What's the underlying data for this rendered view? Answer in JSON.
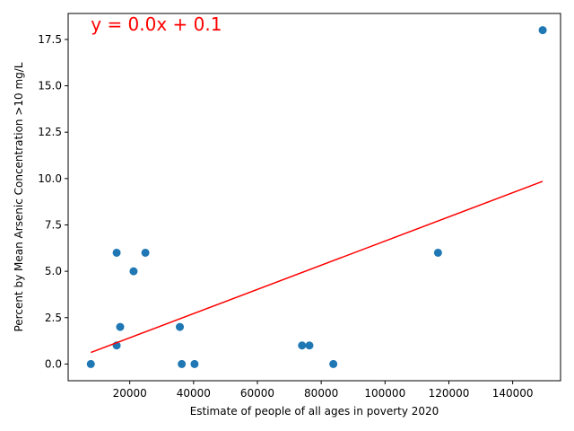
{
  "chart_data": {
    "type": "scatter",
    "title": "",
    "xlabel": "Estimate of people of all ages in poverty 2020",
    "ylabel": "Percent by Mean Arsenic Concentration >10 mg/L",
    "xlim": [
      700,
      155000
    ],
    "ylim": [
      -0.9,
      18.9
    ],
    "xticks": [
      20000,
      40000,
      60000,
      80000,
      100000,
      120000,
      140000
    ],
    "xtick_labels": [
      "20000",
      "40000",
      "60000",
      "80000",
      "100000",
      "120000",
      "140000"
    ],
    "yticks": [
      0.0,
      2.5,
      5.0,
      7.5,
      10.0,
      12.5,
      15.0,
      17.5
    ],
    "ytick_labels": [
      "0.0",
      "2.5",
      "5.0",
      "7.5",
      "10.0",
      "12.5",
      "15.0",
      "17.5"
    ],
    "grid": false,
    "points": [
      {
        "x": 7800,
        "y": 0
      },
      {
        "x": 15900,
        "y": 6
      },
      {
        "x": 15900,
        "y": 1
      },
      {
        "x": 17000,
        "y": 2
      },
      {
        "x": 21200,
        "y": 5
      },
      {
        "x": 24900,
        "y": 6
      },
      {
        "x": 35700,
        "y": 2
      },
      {
        "x": 36300,
        "y": 0
      },
      {
        "x": 40300,
        "y": 0
      },
      {
        "x": 74000,
        "y": 1
      },
      {
        "x": 76300,
        "y": 1
      },
      {
        "x": 83800,
        "y": 0
      },
      {
        "x": 116600,
        "y": 6
      },
      {
        "x": 149400,
        "y": 18
      }
    ],
    "fit_line": {
      "x": [
        7800,
        149400
      ],
      "y": [
        0.62,
        9.85
      ]
    },
    "annotation": "y = 0.0x + 0.1",
    "colors": {
      "points": "#1f77b4",
      "fit_line": "#ff0000",
      "annotation": "#ff0000"
    }
  }
}
